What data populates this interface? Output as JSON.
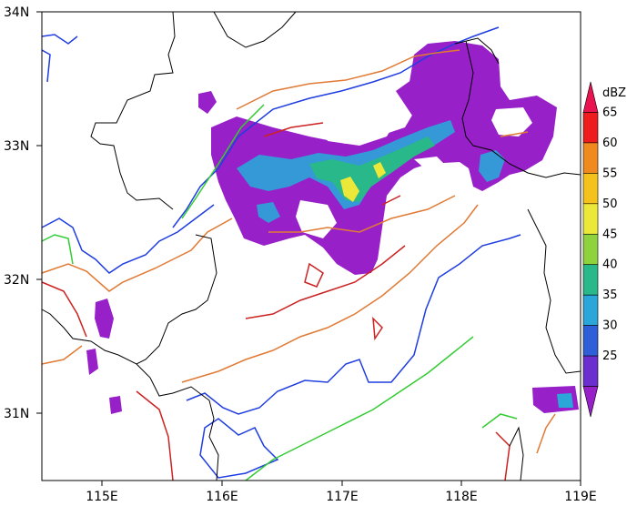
{
  "map": {
    "type": "lat-lon radar reflectivity map",
    "lat_range": [
      30.5,
      34.0
    ],
    "lon_range": [
      114.5,
      119.0
    ],
    "ylabels": [
      "34N",
      "33N",
      "32N",
      "31N"
    ],
    "xlabels": [
      "115E",
      "116E",
      "117E",
      "118E",
      "119E"
    ]
  },
  "colorbar": {
    "unit": "dBZ",
    "ticks": [
      "65",
      "60",
      "55",
      "50",
      "45",
      "40",
      "35",
      "30",
      "25"
    ],
    "colors": [
      "#e8134f",
      "#ee1c1c",
      "#f08a1f",
      "#f4c21a",
      "#ece83a",
      "#8ed23e",
      "#28b889",
      "#2aa6d8",
      "#2f5fd8",
      "#6b2fd0",
      "#9820c8"
    ]
  },
  "map_colors": {
    "reflectivity_low": "#9820c8",
    "reflectivity_mid": "#2aa6d8",
    "reflectivity_high": "#ece83a",
    "contour_blue": "#1f3de0",
    "contour_green": "#33cc33",
    "contour_orange": "#e07a35",
    "contour_red": "#cc2222",
    "boundary": "#000000"
  }
}
